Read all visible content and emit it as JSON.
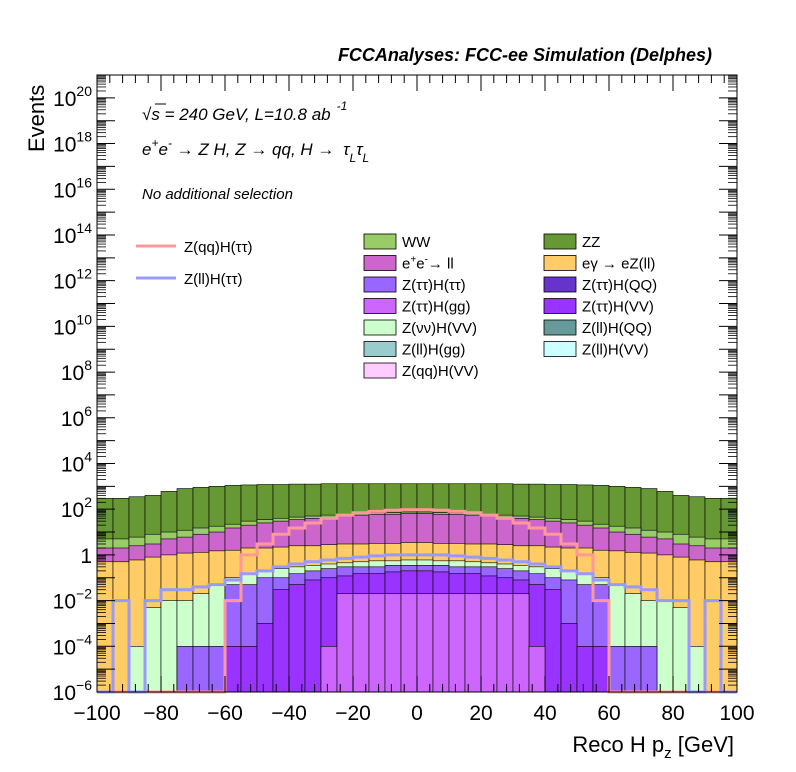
{
  "header": {
    "title": "FCCAnalyses: FCC-ee Simulation (Delphes)"
  },
  "annotations": {
    "energy_lumi": "√s = 240 GeV, L=10.8 ab⁻¹",
    "process": "e⁺e⁻ → Z H, Z → qq, H → τLτL",
    "selection": "No additional selection"
  },
  "axes": {
    "xlabel": "Reco H p_z [GeV]",
    "ylabel": "Events",
    "x_ticks": [
      "−100",
      "−80",
      "−60",
      "−40",
      "−20",
      "0",
      "20",
      "40",
      "60",
      "80",
      "100"
    ],
    "y_ticks": [
      {
        "base": "10",
        "exp": "−6"
      },
      {
        "base": "10",
        "exp": "−4"
      },
      {
        "base": "10",
        "exp": "−2"
      },
      {
        "base": "1",
        "exp": ""
      },
      {
        "base": "10",
        "exp": "2"
      },
      {
        "base": "10",
        "exp": "4"
      },
      {
        "base": "10",
        "exp": "6"
      },
      {
        "base": "10",
        "exp": "8"
      },
      {
        "base": "10",
        "exp": "10"
      },
      {
        "base": "10",
        "exp": "12"
      },
      {
        "base": "10",
        "exp": "14"
      },
      {
        "base": "10",
        "exp": "16"
      },
      {
        "base": "10",
        "exp": "18"
      },
      {
        "base": "10",
        "exp": "20"
      }
    ]
  },
  "legend": {
    "signals": [
      {
        "label": "Z(qq)H(ττ)",
        "color": "#ff9999"
      },
      {
        "label": "Z(ll)H(ττ)",
        "color": "#9999ff"
      }
    ],
    "backgrounds": [
      {
        "label": "WW",
        "color": "#99cc66"
      },
      {
        "label": "ZZ",
        "color": "#669933"
      },
      {
        "label": "e⁺e⁻→ ll",
        "color": "#cc66cc"
      },
      {
        "label": "eγ → eZ(ll)",
        "color": "#ffcc66"
      },
      {
        "label": "Z(ττ)H(ττ)",
        "color": "#9966ff"
      },
      {
        "label": "Z(ττ)H(QQ)",
        "color": "#6633cc"
      },
      {
        "label": "Z(ττ)H(gg)",
        "color": "#cc66ff"
      },
      {
        "label": "Z(ττ)H(VV)",
        "color": "#9933ff"
      },
      {
        "label": "Z(νν)H(VV)",
        "color": "#ccffcc"
      },
      {
        "label": "Z(ll)H(QQ)",
        "color": "#669999"
      },
      {
        "label": "Z(ll)H(gg)",
        "color": "#99cccc"
      },
      {
        "label": "Z(ll)H(VV)",
        "color": "#ccffff"
      },
      {
        "label": "Z(qq)H(VV)",
        "color": "#ffccff"
      }
    ]
  },
  "chart_data": {
    "type": "area",
    "x_scale": "linear",
    "y_scale": "log",
    "xlim": [
      -100,
      100
    ],
    "ylim": [
      1e-06,
      1e+21
    ],
    "bin_edges": [
      -100,
      -95,
      -90,
      -85,
      -80,
      -75,
      -70,
      -65,
      -60,
      -55,
      -50,
      -45,
      -40,
      -35,
      -30,
      -25,
      -20,
      -15,
      -10,
      -5,
      0,
      5,
      10,
      15,
      20,
      25,
      30,
      35,
      40,
      45,
      50,
      55,
      60,
      65,
      70,
      75,
      80,
      85,
      90,
      95,
      100
    ],
    "stack_order_bottom_to_top": [
      "Z(qq)H(VV)",
      "Z(ll)H(VV)",
      "Z(ll)H(gg)",
      "Z(ll)H(QQ)",
      "Z(νν)H(VV)",
      "Z(ττ)H(VV)",
      "Z(ττ)H(gg)",
      "Z(ττ)H(QQ)",
      "Z(ττ)H(ττ)",
      "eγ → eZ(ll)",
      "e⁺e⁻→ ll",
      "WW",
      "ZZ"
    ],
    "stacked_cumulative": [
      {
        "name": "Z(ττ)H(gg)",
        "values": [
          0,
          0,
          0,
          0,
          0,
          0,
          0,
          0,
          0,
          0,
          0,
          0,
          0,
          0,
          0.0001,
          0.02,
          0.02,
          0.02,
          0.02,
          0.02,
          0.02,
          0.02,
          0.02,
          0.02,
          0.02,
          0.02,
          0.02,
          0.0001,
          0,
          0,
          0,
          0,
          0,
          0,
          0,
          0,
          0,
          0,
          0,
          0
        ]
      },
      {
        "name": "Z(ττ)H(VV)",
        "values": [
          0,
          0,
          0,
          0,
          0,
          0,
          0,
          0,
          0.0001,
          0.0001,
          0.001,
          0.03,
          0.05,
          0.08,
          0.1,
          0.12,
          0.15,
          0.15,
          0.18,
          0.2,
          0.2,
          0.18,
          0.15,
          0.15,
          0.12,
          0.1,
          0.08,
          0.05,
          0.03,
          0.001,
          0.0001,
          0.0001,
          0,
          0,
          0,
          0,
          0,
          0,
          0,
          0
        ]
      },
      {
        "name": "Z(ττ)H(ττ)",
        "values": [
          0,
          0,
          0,
          0,
          0,
          0.0001,
          0.0001,
          0.0001,
          0.05,
          0.05,
          0.1,
          0.1,
          0.15,
          0.2,
          0.25,
          0.3,
          0.3,
          0.3,
          0.35,
          0.35,
          0.35,
          0.35,
          0.3,
          0.3,
          0.3,
          0.25,
          0.2,
          0.15,
          0.1,
          0.08,
          0.05,
          0.05,
          0.0001,
          0.0001,
          0.0001,
          0,
          0,
          0,
          0,
          0
        ]
      },
      {
        "name": "Z(νν)H(VV)",
        "values": [
          0,
          0,
          0.0001,
          0.005,
          0.01,
          0.01,
          0.02,
          0.05,
          0.1,
          0.15,
          0.2,
          0.25,
          0.3,
          0.35,
          0.4,
          0.45,
          0.5,
          0.55,
          0.55,
          0.6,
          0.6,
          0.55,
          0.55,
          0.5,
          0.45,
          0.4,
          0.35,
          0.3,
          0.25,
          0.2,
          0.15,
          0.1,
          0.05,
          0.02,
          0.01,
          0.01,
          0.005,
          0.0001,
          0,
          0
        ]
      },
      {
        "name": "eγ → eZ(ll)",
        "values": [
          0.5,
          0.5,
          0.6,
          0.8,
          1,
          1.2,
          1.3,
          1.5,
          1.6,
          2,
          2,
          2.2,
          2.5,
          2.5,
          2.8,
          3,
          3,
          3.2,
          3.2,
          3.5,
          3.5,
          3.2,
          3.2,
          3,
          3,
          2.8,
          2.5,
          2.5,
          2.2,
          2,
          2,
          1.6,
          1.5,
          1.3,
          1.2,
          1,
          0.8,
          0.6,
          0.5,
          0.5
        ]
      },
      {
        "name": "e⁺e⁻→ ll",
        "values": [
          2,
          2,
          2.5,
          3,
          5,
          6,
          8,
          10,
          15,
          20,
          25,
          30,
          35,
          40,
          45,
          50,
          55,
          60,
          60,
          65,
          65,
          60,
          60,
          55,
          50,
          45,
          40,
          35,
          30,
          25,
          20,
          15,
          10,
          8,
          6,
          5,
          3,
          2.5,
          2,
          2
        ]
      },
      {
        "name": "WW",
        "values": [
          5,
          5,
          6,
          8,
          10,
          12,
          15,
          18,
          22,
          30,
          35,
          40,
          45,
          50,
          55,
          60,
          65,
          70,
          70,
          75,
          75,
          70,
          70,
          65,
          60,
          55,
          50,
          45,
          40,
          35,
          30,
          22,
          18,
          15,
          12,
          10,
          8,
          6,
          5,
          5
        ]
      },
      {
        "name": "ZZ",
        "values": [
          300,
          300,
          350,
          400,
          600,
          800,
          900,
          1000,
          1100,
          1150,
          1200,
          1200,
          1250,
          1250,
          1300,
          1300,
          1300,
          1300,
          1300,
          1300,
          1300,
          1300,
          1300,
          1300,
          1300,
          1300,
          1250,
          1250,
          1200,
          1200,
          1150,
          1100,
          1000,
          900,
          800,
          600,
          400,
          350,
          300,
          300
        ]
      }
    ],
    "series": [
      {
        "name": "Z(qq)H(ττ)",
        "values": [
          0,
          0,
          0,
          0,
          0,
          0,
          0,
          0,
          0.01,
          1,
          3,
          8,
          15,
          25,
          40,
          55,
          70,
          80,
          90,
          95,
          95,
          90,
          80,
          70,
          55,
          40,
          25,
          15,
          8,
          3,
          1,
          0.01,
          0,
          0,
          0,
          0,
          0,
          0,
          0,
          0
        ]
      },
      {
        "name": "Z(ll)H(ττ)",
        "values": [
          0,
          0.01,
          0,
          0.01,
          0.03,
          0.03,
          0.04,
          0.05,
          0.08,
          0.15,
          0.2,
          0.3,
          0.4,
          0.5,
          0.6,
          0.7,
          0.8,
          0.9,
          1,
          1,
          1,
          1,
          0.9,
          0.8,
          0.7,
          0.6,
          0.5,
          0.4,
          0.3,
          0.2,
          0.15,
          0.08,
          0.05,
          0.04,
          0.03,
          0.01,
          0.01,
          0,
          0.01,
          0
        ]
      }
    ]
  }
}
